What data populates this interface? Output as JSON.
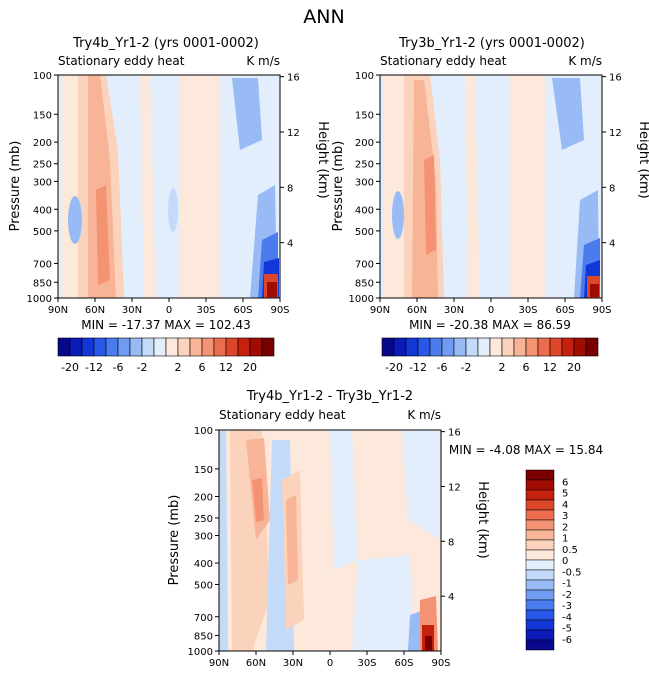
{
  "page_title": "ANN",
  "colors": {
    "neg": [
      "#08088a",
      "#0a1bb8",
      "#1237d6",
      "#2958e8",
      "#4a7cee",
      "#6f9cf2",
      "#98bbf6",
      "#c4daf9",
      "#e3eefc"
    ],
    "pos": [
      "#fde9dc",
      "#fbd2bb",
      "#f8b497",
      "#f39373",
      "#eb6d4d",
      "#dc4629",
      "#c4210f",
      "#a00b02",
      "#7a0000"
    ]
  },
  "chart_data": [
    {
      "type": "contour",
      "title": "Try4b_Yr1-2 (yrs 0001-0002)",
      "subtitle_left": "Stationary eddy heat",
      "subtitle_right": "K m/s",
      "ylabel": "Pressure (mb)",
      "y2label": "Height (km)",
      "x_ticks": [
        "90N",
        "60N",
        "30N",
        "0",
        "30S",
        "60S",
        "90S"
      ],
      "y_ticks": [
        "100",
        "150",
        "200",
        "250",
        "300",
        "400",
        "500",
        "700",
        "850",
        "1000"
      ],
      "y2_ticks": [
        "4",
        "8",
        "12",
        "16"
      ],
      "stats": "MIN = -17.37   MAX = 102.43",
      "colorbar_labels": [
        "-20",
        "-12",
        "-6",
        "-2",
        "2",
        "6",
        "12",
        "20"
      ]
    },
    {
      "type": "contour",
      "title": "Try3b_Yr1-2 (yrs 0001-0002)",
      "subtitle_left": "Stationary eddy heat",
      "subtitle_right": "K m/s",
      "ylabel": "Pressure (mb)",
      "y2label": "Height (km)",
      "x_ticks": [
        "90N",
        "60N",
        "30N",
        "0",
        "30S",
        "60S",
        "90S"
      ],
      "y_ticks": [
        "100",
        "150",
        "200",
        "250",
        "300",
        "400",
        "500",
        "700",
        "850",
        "1000"
      ],
      "y2_ticks": [
        "4",
        "8",
        "12",
        "16"
      ],
      "stats": "MIN = -20.38   MAX = 86.59",
      "colorbar_labels": [
        "-20",
        "-12",
        "-6",
        "-2",
        "2",
        "6",
        "12",
        "20"
      ]
    },
    {
      "type": "contour",
      "title": "Try4b_Yr1-2 - Try3b_Yr1-2",
      "subtitle_left": "Stationary eddy heat",
      "subtitle_right": "K m/s",
      "ylabel": "Pressure (mb)",
      "y2label": "Height (km)",
      "x_ticks": [
        "90N",
        "60N",
        "30N",
        "0",
        "30S",
        "60S",
        "90S"
      ],
      "y_ticks": [
        "100",
        "150",
        "200",
        "250",
        "300",
        "400",
        "500",
        "700",
        "850",
        "1000"
      ],
      "y2_ticks": [
        "4",
        "8",
        "12",
        "16"
      ],
      "stats": "MIN =   -4.08   MAX =   15.84",
      "colorbar_labels": [
        "6",
        "5",
        "4",
        "3",
        "2",
        "1",
        "0.5",
        "0",
        "-0.5",
        "-1",
        "-2",
        "-3",
        "-4",
        "-5",
        "-6"
      ]
    }
  ]
}
